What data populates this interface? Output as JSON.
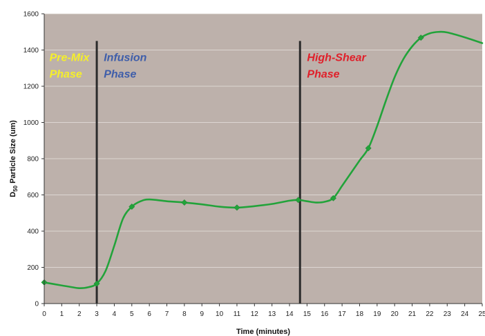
{
  "chart_data": {
    "type": "line",
    "title": "",
    "xlabel": "Time (minutes)",
    "ylabel_subscript": "50",
    "ylabel_main": "D",
    "ylabel_rest": " Particle Size (um)",
    "xlim": [
      0,
      25
    ],
    "ylim": [
      0,
      1600
    ],
    "xticks": [
      0,
      1,
      2,
      3,
      4,
      5,
      6,
      7,
      8,
      9,
      10,
      11,
      12,
      13,
      14,
      15,
      16,
      17,
      18,
      19,
      20,
      21,
      22,
      23,
      24,
      25
    ],
    "yticks": [
      0,
      200,
      400,
      600,
      800,
      1000,
      1200,
      1400,
      1600
    ],
    "grid": "horizontal",
    "background": "#bdb1ab",
    "series": [
      {
        "color": "#22a33a",
        "curve": [
          [
            0,
            117
          ],
          [
            1,
            100
          ],
          [
            1.5,
            92
          ],
          [
            2,
            85
          ],
          [
            2.5,
            90
          ],
          [
            3,
            110
          ],
          [
            3.5,
            180
          ],
          [
            4,
            320
          ],
          [
            4.5,
            470
          ],
          [
            5,
            535
          ],
          [
            5.5,
            565
          ],
          [
            6,
            575
          ],
          [
            7,
            565
          ],
          [
            8,
            558
          ],
          [
            9,
            548
          ],
          [
            10,
            535
          ],
          [
            11,
            530
          ],
          [
            12,
            538
          ],
          [
            13,
            550
          ],
          [
            14,
            568
          ],
          [
            14.5,
            572
          ],
          [
            15,
            565
          ],
          [
            15.5,
            558
          ],
          [
            16,
            562
          ],
          [
            16.5,
            582
          ],
          [
            17,
            650
          ],
          [
            17.5,
            720
          ],
          [
            18,
            790
          ],
          [
            18.5,
            858
          ],
          [
            19,
            980
          ],
          [
            19.5,
            1120
          ],
          [
            20,
            1250
          ],
          [
            20.5,
            1350
          ],
          [
            21,
            1420
          ],
          [
            21.5,
            1468
          ],
          [
            22,
            1492
          ],
          [
            22.5,
            1500
          ],
          [
            23,
            1497
          ],
          [
            24,
            1470
          ],
          [
            25,
            1438
          ]
        ],
        "markers": [
          [
            0,
            117
          ],
          [
            3,
            110
          ],
          [
            5,
            535
          ],
          [
            8,
            558
          ],
          [
            11,
            530
          ],
          [
            14.5,
            572
          ],
          [
            16.5,
            582
          ],
          [
            18.5,
            858
          ],
          [
            21.5,
            1468
          ]
        ]
      }
    ],
    "phase_lines": [
      3,
      14.6
    ],
    "phase_line_ymax": 1450,
    "annotations": [
      {
        "lines": [
          "Pre-Mix",
          "Phase"
        ],
        "x": 0.3,
        "y": 1340,
        "color": "#f5ef2a"
      },
      {
        "lines": [
          "Infusion",
          "Phase"
        ],
        "x": 3.4,
        "y": 1340,
        "color": "#3f5eaa"
      },
      {
        "lines": [
          "High-Shear",
          "Phase"
        ],
        "x": 15.0,
        "y": 1340,
        "color": "#e0202a"
      }
    ]
  }
}
